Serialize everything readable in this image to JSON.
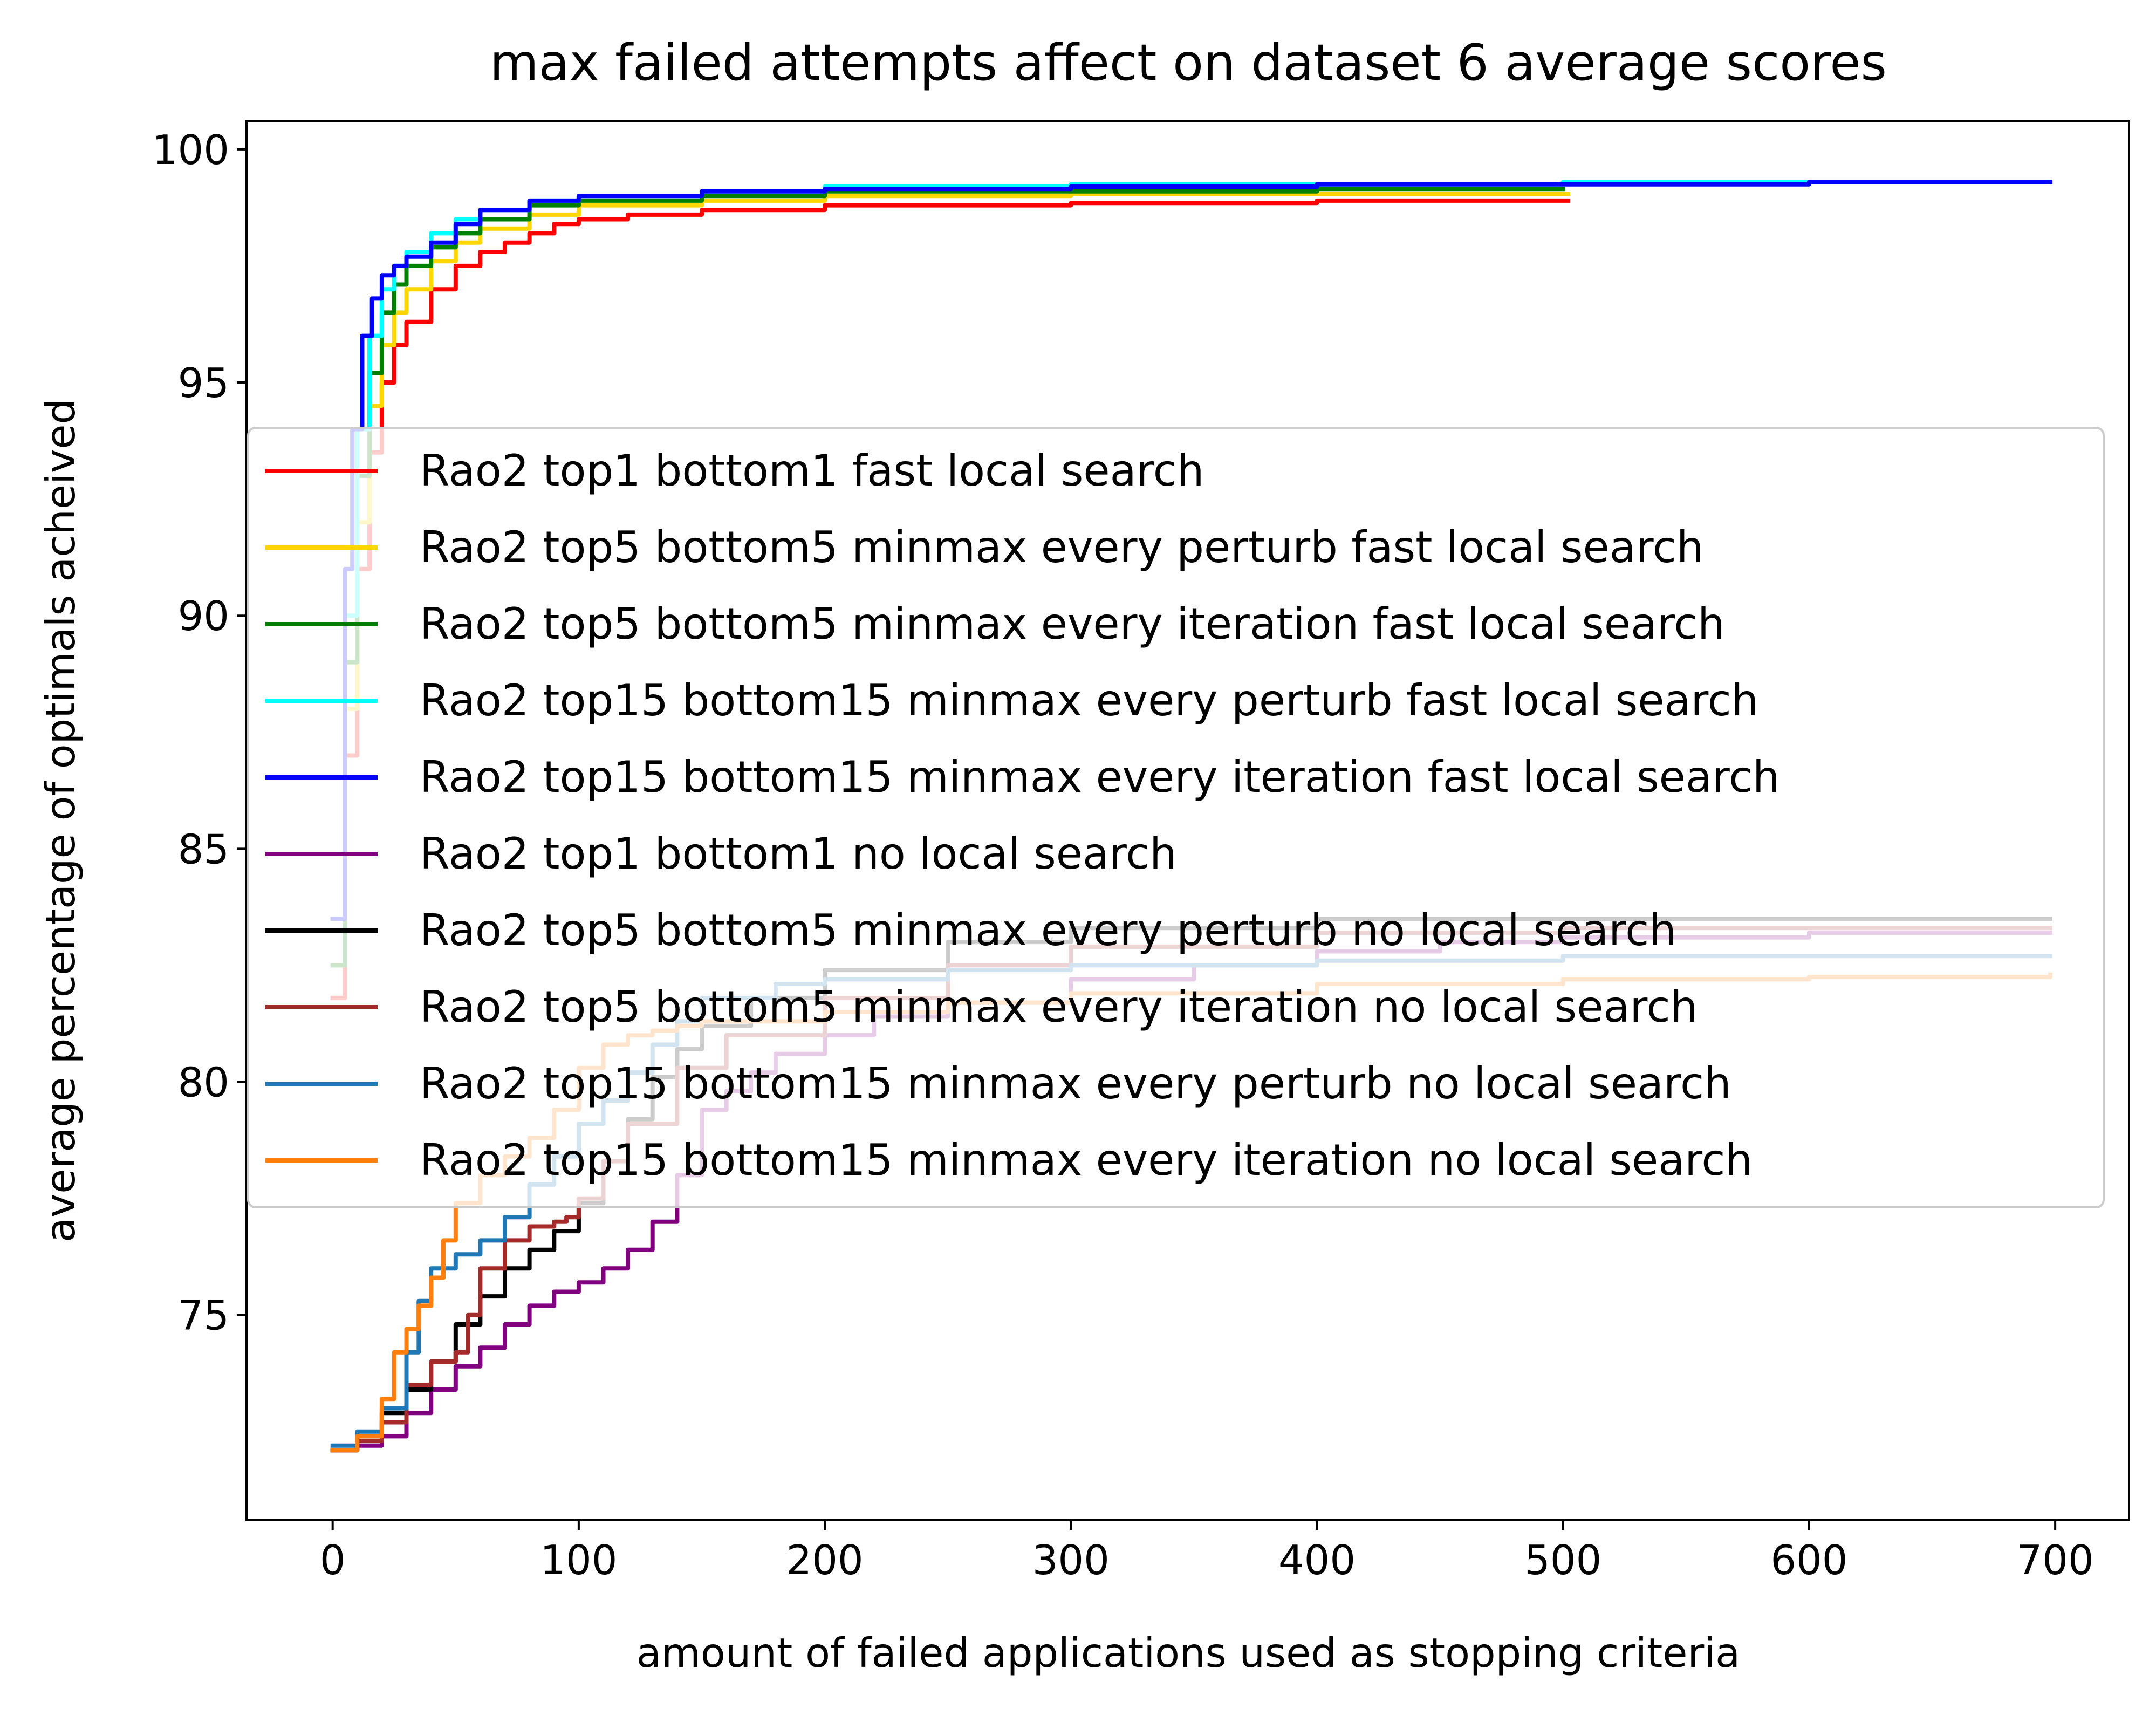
{
  "chart_data": {
    "type": "line",
    "title": "max failed attempts affect on dataset 6 average scores",
    "xlabel": "amount of failed applications used as stopping criteria",
    "ylabel": "average percentage of optimals acheived",
    "xlim": [
      -35,
      730
    ],
    "ylim": [
      70.6,
      100.6
    ],
    "xticks": [
      0,
      100,
      200,
      300,
      400,
      500,
      600,
      700
    ],
    "yticks": [
      75,
      80,
      85,
      90,
      95,
      100
    ],
    "grid": false,
    "legend_position": "center",
    "series": [
      {
        "name": "Rao2 top1 bottom1 fast local search",
        "color": "#ff0000",
        "x": [
          0,
          5,
          10,
          15,
          20,
          25,
          30,
          40,
          50,
          60,
          70,
          80,
          90,
          100,
          120,
          150,
          200,
          300,
          400,
          502
        ],
        "y": [
          81.8,
          87.0,
          91.0,
          93.5,
          95.0,
          95.8,
          96.3,
          97.0,
          97.5,
          97.8,
          98.0,
          98.2,
          98.4,
          98.5,
          98.6,
          98.7,
          98.8,
          98.85,
          98.9,
          98.9
        ]
      },
      {
        "name": "Rao2 top5 bottom5 minmax every perturb fast local search",
        "color": "#ffd700",
        "x": [
          0,
          5,
          10,
          15,
          20,
          25,
          30,
          40,
          50,
          60,
          80,
          100,
          150,
          200,
          300,
          400,
          502
        ],
        "y": [
          82.5,
          88.0,
          92.0,
          94.5,
          95.8,
          96.5,
          97.0,
          97.6,
          98.0,
          98.3,
          98.6,
          98.8,
          98.9,
          99.0,
          99.05,
          99.05,
          99.05
        ]
      },
      {
        "name": "Rao2 top5 bottom5 minmax every iteration fast local search",
        "color": "#008000",
        "x": [
          0,
          5,
          10,
          15,
          20,
          25,
          30,
          40,
          50,
          60,
          80,
          100,
          150,
          200,
          300,
          400,
          500
        ],
        "y": [
          82.5,
          89.0,
          93.0,
          95.2,
          96.5,
          97.1,
          97.5,
          97.9,
          98.2,
          98.5,
          98.8,
          98.9,
          99.0,
          99.1,
          99.1,
          99.15,
          99.15
        ]
      },
      {
        "name": "Rao2 top15 bottom15 minmax every perturb fast local search",
        "color": "#00ffff",
        "x": [
          0,
          5,
          10,
          15,
          20,
          25,
          30,
          40,
          50,
          60,
          80,
          100,
          150,
          200,
          300,
          400,
          500,
          600,
          698
        ],
        "y": [
          83.5,
          90.0,
          94.0,
          96.0,
          97.0,
          97.5,
          97.8,
          98.2,
          98.5,
          98.7,
          98.9,
          99.0,
          99.1,
          99.2,
          99.25,
          99.25,
          99.3,
          99.3,
          99.3
        ]
      },
      {
        "name": "Rao2 top15 bottom15 minmax every iteration fast local search",
        "color": "#0000ff",
        "x": [
          0,
          5,
          8,
          12,
          16,
          20,
          25,
          30,
          40,
          50,
          60,
          80,
          100,
          150,
          200,
          300,
          400,
          500,
          600,
          698
        ],
        "y": [
          83.5,
          91.0,
          94.0,
          96.0,
          96.8,
          97.3,
          97.5,
          97.7,
          98.0,
          98.4,
          98.7,
          98.9,
          99.0,
          99.1,
          99.15,
          99.2,
          99.25,
          99.25,
          99.3,
          99.3
        ]
      },
      {
        "name": "Rao2 top1 bottom1 no local search",
        "color": "#800080",
        "x": [
          0,
          10,
          20,
          30,
          40,
          50,
          60,
          70,
          80,
          90,
          100,
          110,
          120,
          130,
          140,
          150,
          160,
          170,
          180,
          200,
          220,
          250,
          300,
          350,
          400,
          450,
          500,
          600,
          698
        ],
        "y": [
          72.1,
          72.2,
          72.4,
          72.9,
          73.4,
          73.9,
          74.3,
          74.8,
          75.2,
          75.5,
          75.7,
          76.0,
          76.4,
          77.0,
          78.0,
          79.4,
          79.8,
          80.2,
          80.6,
          81.0,
          81.4,
          81.7,
          82.2,
          82.5,
          82.8,
          83.0,
          83.1,
          83.2,
          83.2
        ]
      },
      {
        "name": "Rao2 top5 bottom5 minmax every perturb no local search",
        "color": "#000000",
        "x": [
          0,
          10,
          20,
          30,
          40,
          50,
          60,
          70,
          80,
          90,
          100,
          110,
          120,
          130,
          140,
          150,
          170,
          200,
          250,
          300,
          400,
          500,
          600,
          698
        ],
        "y": [
          72.1,
          72.4,
          72.9,
          73.4,
          74.0,
          74.8,
          75.4,
          76.0,
          76.4,
          76.8,
          77.4,
          78.3,
          79.2,
          80.1,
          80.7,
          81.2,
          81.8,
          82.4,
          83.0,
          83.3,
          83.5,
          83.5,
          83.5,
          83.5
        ]
      },
      {
        "name": "Rao2 top5 bottom5 minmax every iteration no local search",
        "color": "#a52a2a",
        "x": [
          0,
          10,
          20,
          30,
          40,
          50,
          55,
          60,
          70,
          80,
          90,
          95,
          100,
          110,
          120,
          140,
          160,
          200,
          250,
          300,
          400,
          500,
          600,
          698
        ],
        "y": [
          72.1,
          72.3,
          72.7,
          73.5,
          74.0,
          74.2,
          75.0,
          76.0,
          76.6,
          76.9,
          77.0,
          77.1,
          77.5,
          78.3,
          79.1,
          80.3,
          81.0,
          81.8,
          82.5,
          82.9,
          83.2,
          83.3,
          83.3,
          83.3
        ]
      },
      {
        "name": "Rao2 top15 bottom15 minmax every perturb no local search",
        "color": "#1f77b4",
        "x": [
          0,
          10,
          20,
          30,
          35,
          40,
          50,
          60,
          70,
          80,
          90,
          100,
          110,
          120,
          130,
          140,
          150,
          180,
          200,
          250,
          300,
          400,
          500,
          600,
          698
        ],
        "y": [
          72.2,
          72.5,
          73.0,
          74.2,
          75.3,
          76.0,
          76.3,
          76.6,
          77.1,
          77.8,
          78.4,
          79.1,
          79.6,
          80.2,
          80.8,
          81.3,
          81.8,
          82.1,
          82.2,
          82.4,
          82.5,
          82.6,
          82.7,
          82.7,
          82.7
        ]
      },
      {
        "name": "Rao2 top15 bottom15 minmax every iteration no local search",
        "color": "#ff7f0e",
        "x": [
          0,
          10,
          20,
          25,
          30,
          35,
          40,
          45,
          50,
          60,
          70,
          80,
          90,
          100,
          110,
          120,
          130,
          140,
          150,
          200,
          250,
          300,
          400,
          500,
          600,
          698
        ],
        "y": [
          72.1,
          72.4,
          73.2,
          74.2,
          74.7,
          75.2,
          75.8,
          76.6,
          77.4,
          78.0,
          78.4,
          78.8,
          79.4,
          80.3,
          80.8,
          81.0,
          81.1,
          81.2,
          81.3,
          81.5,
          81.7,
          81.9,
          82.1,
          82.2,
          82.25,
          82.3
        ]
      }
    ]
  }
}
